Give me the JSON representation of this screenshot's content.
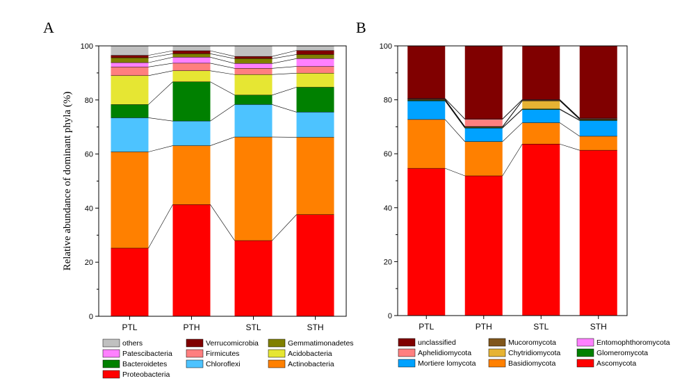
{
  "chart_data": [
    {
      "panel": "A",
      "type": "bar",
      "stacked": true,
      "ylabel": "Relative abundance of dominant phyla (%)",
      "ylim": [
        0,
        100
      ],
      "yticks": [
        "0",
        "20",
        "40",
        "60",
        "80",
        "100"
      ],
      "categories": [
        "PTL",
        "PTH",
        "STL",
        "STH"
      ],
      "series": [
        {
          "name": "Proteobacteria",
          "color": "#FF0000",
          "values": [
            25.2,
            41.3,
            28.0,
            37.6
          ]
        },
        {
          "name": "Actinobacteria",
          "color": "#FF8000",
          "values": [
            35.6,
            21.8,
            38.3,
            28.6
          ]
        },
        {
          "name": "Chloroflexi",
          "color": "#4DC3FF",
          "values": [
            12.6,
            9.1,
            12.0,
            9.3
          ]
        },
        {
          "name": "Bacteroidetes",
          "color": "#008000",
          "values": [
            4.9,
            14.5,
            3.5,
            9.2
          ]
        },
        {
          "name": "Acidobacteria",
          "color": "#E6E633",
          "values": [
            10.7,
            4.1,
            7.6,
            5.2
          ]
        },
        {
          "name": "Firmicutes",
          "color": "#FF7F7F",
          "values": [
            3.2,
            2.8,
            2.3,
            2.5
          ]
        },
        {
          "name": "Patescibacteria",
          "color": "#FF80FF",
          "values": [
            1.6,
            2.2,
            1.8,
            2.9
          ]
        },
        {
          "name": "Gemmatimonadetes",
          "color": "#808000",
          "values": [
            1.8,
            1.3,
            1.8,
            1.5
          ]
        },
        {
          "name": "Verrucomicrobia",
          "color": "#800000",
          "values": [
            0.9,
            1.1,
            0.8,
            1.5
          ]
        },
        {
          "name": "others",
          "color": "#C0C0C0",
          "values": [
            3.5,
            1.8,
            3.9,
            1.7
          ]
        }
      ],
      "legend": [
        "others",
        "Verrucomicrobia",
        "Gemmatimonadetes",
        "Patescibacteria",
        "Firmicutes",
        "Acidobacteria",
        "Bacteroidetes",
        "Chloroflexi",
        "Actinobacteria",
        "Proteobacteria"
      ],
      "legend_position": "bottom"
    },
    {
      "panel": "B",
      "type": "bar",
      "stacked": true,
      "ylabel": "",
      "ylim": [
        0,
        100
      ],
      "yticks": [
        "0",
        "20",
        "40",
        "60",
        "80",
        "100"
      ],
      "categories": [
        "PTL",
        "PTH",
        "STL",
        "STH"
      ],
      "series": [
        {
          "name": "Ascomycota",
          "color": "#FF0000",
          "values": [
            54.6,
            51.8,
            63.6,
            61.3
          ]
        },
        {
          "name": "Basidiomycota",
          "color": "#FF8000",
          "values": [
            18.1,
            12.7,
            7.9,
            5.2
          ]
        },
        {
          "name": "Mortiere lomycota",
          "color": "#00A2FF",
          "values": [
            6.9,
            5.0,
            4.9,
            5.8
          ]
        },
        {
          "name": "Glomeromycota",
          "color": "#008000",
          "values": [
            0.2,
            0.2,
            0.2,
            0.2
          ]
        },
        {
          "name": "Chytridiomycota",
          "color": "#E6B333",
          "values": [
            0.2,
            0.2,
            3.0,
            0.2
          ]
        },
        {
          "name": "Mucoromycota",
          "color": "#80561B",
          "values": [
            0.2,
            0.2,
            0.2,
            0.2
          ]
        },
        {
          "name": "Aphelidiomycota",
          "color": "#FF7F7F",
          "values": [
            0.2,
            2.7,
            0.2,
            0.2
          ]
        },
        {
          "name": "Entomophthoromycota",
          "color": "#FF80FF",
          "values": [
            0.1,
            0.1,
            0.1,
            0.1
          ]
        },
        {
          "name": "unclassified",
          "color": "#800000",
          "values": [
            19.5,
            27.1,
            19.9,
            26.8
          ]
        }
      ],
      "legend": [
        "unclassified",
        "Mucoromycota",
        "Entomophthoromycota",
        "Aphelidiomycota",
        "Chytridiomycota",
        "Glomeromycota",
        "Mortiere lomycota",
        "Basidiomycota",
        "Ascomycota"
      ],
      "legend_position": "bottom"
    }
  ]
}
